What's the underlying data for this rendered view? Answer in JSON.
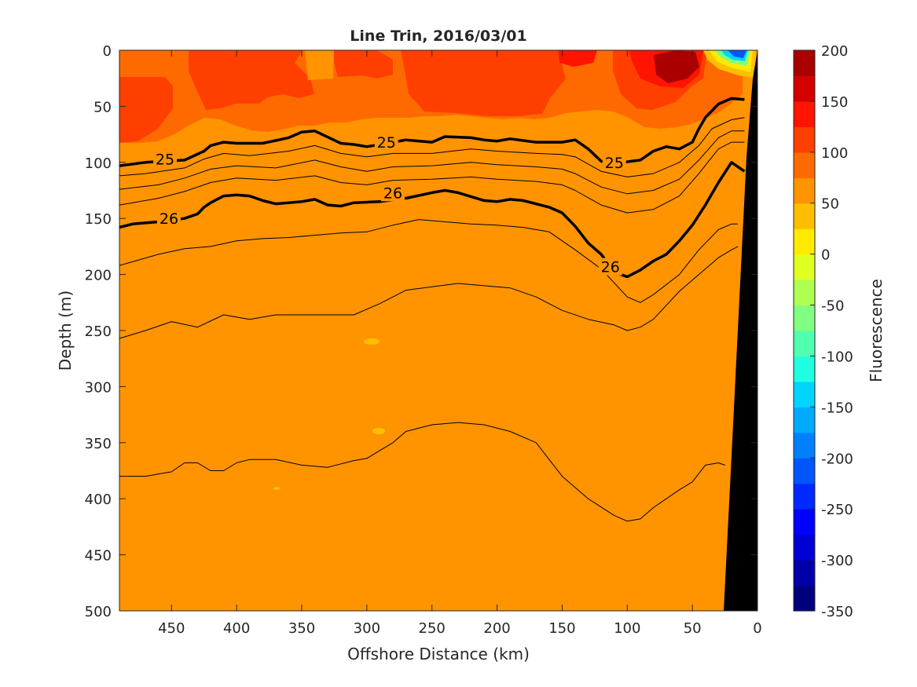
{
  "chart_data": {
    "type": "contour",
    "title": "Line Trin, 2016/03/01",
    "xlabel": "Offshore Distance (km)",
    "ylabel": "Depth (m)",
    "xlim": [
      490,
      0
    ],
    "ylim": [
      500,
      0
    ],
    "x_reversed": true,
    "y_reversed": true,
    "xticks": [
      450,
      400,
      350,
      300,
      250,
      200,
      150,
      100,
      50,
      0
    ],
    "yticks": [
      0,
      50,
      100,
      150,
      200,
      250,
      300,
      350,
      400,
      450,
      500
    ],
    "colorbar": {
      "label": "Fluorescence",
      "range": [
        -350,
        200
      ],
      "ticks": [
        200,
        150,
        100,
        50,
        0,
        -50,
        -100,
        -150,
        -200,
        -250,
        -300,
        -350
      ],
      "colors": [
        "#00007f",
        "#0000aa",
        "#0000d4",
        "#0000ff",
        "#0028ff",
        "#0055ff",
        "#0080ff",
        "#00aaff",
        "#00d4ff",
        "#20ffdf",
        "#50ffaf",
        "#80ff80",
        "#afff50",
        "#dfff20",
        "#ffea00",
        "#ffbf00",
        "#ff9400",
        "#ff6a00",
        "#ff3f00",
        "#ff1400",
        "#d40000",
        "#aa0000"
      ]
    },
    "background_level_color": "#ff9400",
    "contour_labels": [
      {
        "text": "25",
        "x": 455,
        "y": 97
      },
      {
        "text": "25",
        "x": 285,
        "y": 82
      },
      {
        "text": "25",
        "x": 110,
        "y": 100
      },
      {
        "text": "26",
        "x": 452,
        "y": 150
      },
      {
        "text": "26",
        "x": 280,
        "y": 127
      },
      {
        "text": "26",
        "x": 113,
        "y": 193
      }
    ],
    "isopycnals": [
      {
        "level": "25",
        "bold": true,
        "points": [
          [
            490,
            103
          ],
          [
            470,
            100
          ],
          [
            440,
            98
          ],
          [
            425,
            90
          ],
          [
            420,
            85
          ],
          [
            410,
            82
          ],
          [
            400,
            83
          ],
          [
            380,
            83
          ],
          [
            360,
            78
          ],
          [
            350,
            73
          ],
          [
            340,
            72
          ],
          [
            320,
            83
          ],
          [
            310,
            84
          ],
          [
            300,
            86
          ],
          [
            290,
            84
          ],
          [
            270,
            80
          ],
          [
            250,
            82
          ],
          [
            240,
            77
          ],
          [
            220,
            78
          ],
          [
            210,
            80
          ],
          [
            200,
            81
          ],
          [
            190,
            79
          ],
          [
            170,
            82
          ],
          [
            150,
            82
          ],
          [
            140,
            80
          ],
          [
            130,
            88
          ],
          [
            120,
            99
          ],
          [
            110,
            101
          ],
          [
            90,
            98
          ],
          [
            80,
            90
          ],
          [
            70,
            86
          ],
          [
            60,
            88
          ],
          [
            50,
            82
          ],
          [
            45,
            70
          ],
          [
            40,
            60
          ],
          [
            30,
            48
          ],
          [
            20,
            43
          ],
          [
            10,
            44
          ]
        ]
      },
      {
        "level": "",
        "points": [
          [
            490,
            112
          ],
          [
            470,
            110
          ],
          [
            440,
            105
          ],
          [
            425,
            97
          ],
          [
            410,
            92
          ],
          [
            390,
            94
          ],
          [
            360,
            90
          ],
          [
            340,
            85
          ],
          [
            320,
            92
          ],
          [
            300,
            95
          ],
          [
            280,
            92
          ],
          [
            250,
            92
          ],
          [
            220,
            88
          ],
          [
            200,
            90
          ],
          [
            170,
            92
          ],
          [
            150,
            93
          ],
          [
            140,
            95
          ],
          [
            120,
            108
          ],
          [
            100,
            113
          ],
          [
            80,
            110
          ],
          [
            60,
            100
          ],
          [
            45,
            85
          ],
          [
            35,
            70
          ],
          [
            20,
            62
          ],
          [
            10,
            60
          ]
        ]
      },
      {
        "level": "",
        "points": [
          [
            490,
            124
          ],
          [
            460,
            120
          ],
          [
            440,
            114
          ],
          [
            420,
            106
          ],
          [
            400,
            103
          ],
          [
            370,
            105
          ],
          [
            340,
            98
          ],
          [
            320,
            104
          ],
          [
            300,
            108
          ],
          [
            280,
            104
          ],
          [
            250,
            103
          ],
          [
            220,
            100
          ],
          [
            200,
            102
          ],
          [
            170,
            104
          ],
          [
            150,
            106
          ],
          [
            140,
            110
          ],
          [
            120,
            122
          ],
          [
            100,
            128
          ],
          [
            80,
            125
          ],
          [
            60,
            115
          ],
          [
            45,
            98
          ],
          [
            30,
            78
          ],
          [
            20,
            72
          ],
          [
            10,
            72
          ]
        ]
      },
      {
        "level": "",
        "points": [
          [
            490,
            138
          ],
          [
            460,
            132
          ],
          [
            440,
            126
          ],
          [
            420,
            118
          ],
          [
            400,
            114
          ],
          [
            370,
            116
          ],
          [
            340,
            112
          ],
          [
            320,
            118
          ],
          [
            300,
            120
          ],
          [
            280,
            116
          ],
          [
            250,
            115
          ],
          [
            220,
            113
          ],
          [
            200,
            115
          ],
          [
            170,
            117
          ],
          [
            150,
            120
          ],
          [
            140,
            125
          ],
          [
            120,
            138
          ],
          [
            100,
            145
          ],
          [
            80,
            142
          ],
          [
            60,
            130
          ],
          [
            45,
            110
          ],
          [
            30,
            88
          ],
          [
            20,
            82
          ],
          [
            10,
            82
          ]
        ]
      },
      {
        "level": "26",
        "bold": true,
        "points": [
          [
            490,
            158
          ],
          [
            480,
            155
          ],
          [
            460,
            153
          ],
          [
            440,
            150
          ],
          [
            430,
            146
          ],
          [
            425,
            140
          ],
          [
            420,
            136
          ],
          [
            410,
            130
          ],
          [
            400,
            129
          ],
          [
            390,
            130
          ],
          [
            380,
            134
          ],
          [
            370,
            137
          ],
          [
            350,
            135
          ],
          [
            340,
            133
          ],
          [
            330,
            138
          ],
          [
            320,
            139
          ],
          [
            310,
            136
          ],
          [
            290,
            135
          ],
          [
            270,
            132
          ],
          [
            250,
            127
          ],
          [
            240,
            125
          ],
          [
            230,
            127
          ],
          [
            210,
            134
          ],
          [
            200,
            135
          ],
          [
            190,
            133
          ],
          [
            180,
            134
          ],
          [
            160,
            140
          ],
          [
            150,
            145
          ],
          [
            140,
            157
          ],
          [
            130,
            172
          ],
          [
            120,
            182
          ],
          [
            110,
            198
          ],
          [
            100,
            202
          ],
          [
            90,
            196
          ],
          [
            80,
            188
          ],
          [
            70,
            182
          ],
          [
            60,
            170
          ],
          [
            50,
            156
          ],
          [
            40,
            138
          ],
          [
            30,
            118
          ],
          [
            20,
            100
          ],
          [
            10,
            108
          ]
        ]
      },
      {
        "level": "",
        "points": [
          [
            490,
            192
          ],
          [
            460,
            182
          ],
          [
            440,
            177
          ],
          [
            420,
            175
          ],
          [
            400,
            170
          ],
          [
            380,
            168
          ],
          [
            360,
            167
          ],
          [
            340,
            165
          ],
          [
            320,
            163
          ],
          [
            300,
            162
          ],
          [
            280,
            156
          ],
          [
            260,
            151
          ],
          [
            240,
            153
          ],
          [
            220,
            155
          ],
          [
            200,
            156
          ],
          [
            180,
            158
          ],
          [
            160,
            162
          ],
          [
            140,
            178
          ],
          [
            120,
            195
          ],
          [
            100,
            220
          ],
          [
            90,
            225
          ],
          [
            80,
            218
          ],
          [
            60,
            200
          ],
          [
            45,
            178
          ],
          [
            30,
            160
          ],
          [
            20,
            155
          ],
          [
            15,
            155
          ]
        ]
      },
      {
        "level": "",
        "points": [
          [
            490,
            257
          ],
          [
            470,
            250
          ],
          [
            450,
            242
          ],
          [
            430,
            247
          ],
          [
            410,
            236
          ],
          [
            390,
            240
          ],
          [
            370,
            236
          ],
          [
            350,
            236
          ],
          [
            330,
            236
          ],
          [
            310,
            236
          ],
          [
            290,
            226
          ],
          [
            270,
            214
          ],
          [
            250,
            211
          ],
          [
            230,
            208
          ],
          [
            210,
            210
          ],
          [
            190,
            212
          ],
          [
            170,
            220
          ],
          [
            150,
            232
          ],
          [
            130,
            240
          ],
          [
            110,
            245
          ],
          [
            100,
            250
          ],
          [
            90,
            247
          ],
          [
            80,
            240
          ],
          [
            60,
            215
          ],
          [
            50,
            205
          ],
          [
            40,
            195
          ],
          [
            30,
            185
          ],
          [
            20,
            178
          ],
          [
            15,
            175
          ]
        ]
      },
      {
        "level": "",
        "points": [
          [
            490,
            380
          ],
          [
            470,
            380
          ],
          [
            450,
            376
          ],
          [
            440,
            368
          ],
          [
            430,
            368
          ],
          [
            420,
            375
          ],
          [
            410,
            375
          ],
          [
            400,
            368
          ],
          [
            390,
            365
          ],
          [
            370,
            365
          ],
          [
            350,
            370
          ],
          [
            330,
            372
          ],
          [
            310,
            366
          ],
          [
            300,
            364
          ],
          [
            280,
            350
          ],
          [
            270,
            340
          ],
          [
            250,
            334
          ],
          [
            230,
            332
          ],
          [
            210,
            334
          ],
          [
            190,
            340
          ],
          [
            170,
            350
          ],
          [
            150,
            380
          ],
          [
            130,
            400
          ],
          [
            110,
            415
          ],
          [
            100,
            420
          ],
          [
            90,
            418
          ],
          [
            80,
            408
          ],
          [
            60,
            392
          ],
          [
            50,
            385
          ],
          [
            40,
            370
          ],
          [
            30,
            368
          ],
          [
            25,
            370
          ]
        ]
      }
    ]
  }
}
